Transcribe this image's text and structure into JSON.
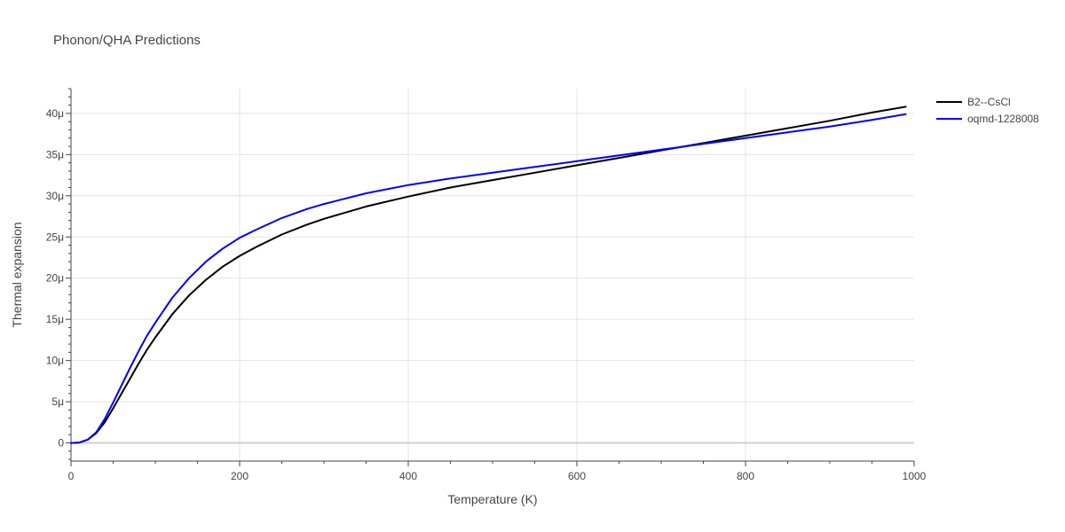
{
  "chart_data": {
    "type": "line",
    "title": "Phonon/QHA Predictions",
    "xlabel": "Temperature (K)",
    "ylabel": "Thermal expansion",
    "xlim": [
      0,
      1000
    ],
    "ylim": [
      -2.2e-06,
      4.3e-05
    ],
    "xticks": [
      0,
      200,
      400,
      600,
      800,
      1000
    ],
    "xtick_labels": [
      "0",
      "200",
      "400",
      "600",
      "800",
      "1000"
    ],
    "yticks": [
      0,
      5e-06,
      1e-05,
      1.5e-05,
      2e-05,
      2.5e-05,
      3e-05,
      3.5e-05,
      4e-05
    ],
    "ytick_labels": [
      "0",
      "5μ",
      "10μ",
      "15μ",
      "20μ",
      "25μ",
      "30μ",
      "35μ",
      "40μ"
    ],
    "grid": true,
    "legend_position": "top-right",
    "series": [
      {
        "name": "B2--CsCl",
        "color": "#000000",
        "x": [
          0,
          10,
          20,
          30,
          40,
          50,
          60,
          70,
          80,
          90,
          100,
          120,
          140,
          160,
          180,
          200,
          220,
          250,
          280,
          300,
          350,
          400,
          450,
          500,
          550,
          600,
          650,
          700,
          750,
          800,
          850,
          900,
          950,
          990
        ],
        "y": [
          0,
          5e-08,
          4e-07,
          1.2e-06,
          2.5e-06,
          4.2e-06,
          6e-06,
          7.8e-06,
          9.6e-06,
          1.13e-05,
          1.28e-05,
          1.56e-05,
          1.79e-05,
          1.98e-05,
          2.14e-05,
          2.27e-05,
          2.38e-05,
          2.53e-05,
          2.65e-05,
          2.72e-05,
          2.87e-05,
          2.99e-05,
          3.1e-05,
          3.19e-05,
          3.28e-05,
          3.37e-05,
          3.46e-05,
          3.55e-05,
          3.64e-05,
          3.73e-05,
          3.82e-05,
          3.91e-05,
          4.01e-05,
          4.08e-05
        ]
      },
      {
        "name": "oqmd-1228008",
        "color": "#0000ff",
        "x": [
          0,
          10,
          20,
          30,
          40,
          50,
          60,
          70,
          80,
          90,
          100,
          120,
          140,
          160,
          180,
          200,
          220,
          250,
          280,
          300,
          350,
          400,
          450,
          500,
          550,
          600,
          650,
          700,
          750,
          800,
          850,
          900,
          950,
          990
        ],
        "y": [
          0,
          5e-08,
          4e-07,
          1.3e-06,
          2.9e-06,
          4.9e-06,
          7e-06,
          9.1e-06,
          1.11e-05,
          1.3e-05,
          1.46e-05,
          1.76e-05,
          2e-05,
          2.2e-05,
          2.36e-05,
          2.49e-05,
          2.59e-05,
          2.73e-05,
          2.84e-05,
          2.9e-05,
          3.03e-05,
          3.13e-05,
          3.21e-05,
          3.28e-05,
          3.35e-05,
          3.42e-05,
          3.49e-05,
          3.56e-05,
          3.63e-05,
          3.7e-05,
          3.77e-05,
          3.84e-05,
          3.92e-05,
          3.99e-05
        ]
      }
    ]
  }
}
